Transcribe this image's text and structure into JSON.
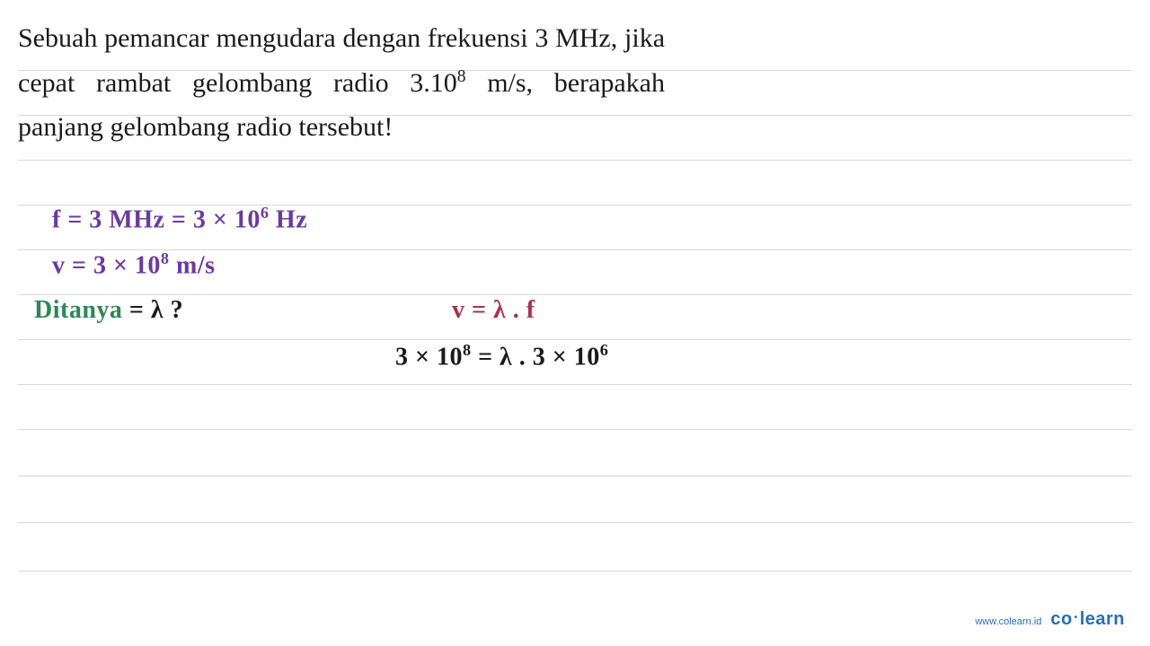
{
  "layout": {
    "ruled_line_positions": [
      78,
      128,
      178,
      228,
      278,
      328,
      378,
      428,
      478,
      530,
      582,
      636
    ],
    "ruled_line_color": "#d8d8d8"
  },
  "problem": {
    "line1": "Sebuah pemancar mengudara dengan",
    "line2_a": "frekuensi 3 MHz, jika cepat rambat",
    "line3_a": "gelombang radio 3.10",
    "line3_sup": "8",
    "line3_b": " m/s, berapakah",
    "line4": "panjang gelombang radio tersebut!",
    "text_color": "#1a1a1a",
    "font_size": 30
  },
  "handwriting": {
    "given_f_a": "f = 3 MHz = 3 × 10",
    "given_f_sup": "6",
    "given_f_b": " Hz",
    "given_v_a": "v = 3 × 10",
    "given_v_sup": "8",
    "given_v_b": "  m/s",
    "ditanya_label": "Ditanya",
    "ditanya_rest": " = λ  ?",
    "formula": "v = λ . f",
    "calc_a": "3 × 10",
    "calc_sup1": "8",
    "calc_b": " = λ .  3 × 10",
    "calc_sup2": "6",
    "colors": {
      "purple": "#6b3aa0",
      "green": "#2d8659",
      "maroon": "#a83250",
      "black": "#1a1a1a"
    },
    "font_size": 28
  },
  "footer": {
    "url": "www.colearn.id",
    "logo_a": "co",
    "logo_dot": "•",
    "logo_b": "learn",
    "color": "#2a6db5"
  }
}
